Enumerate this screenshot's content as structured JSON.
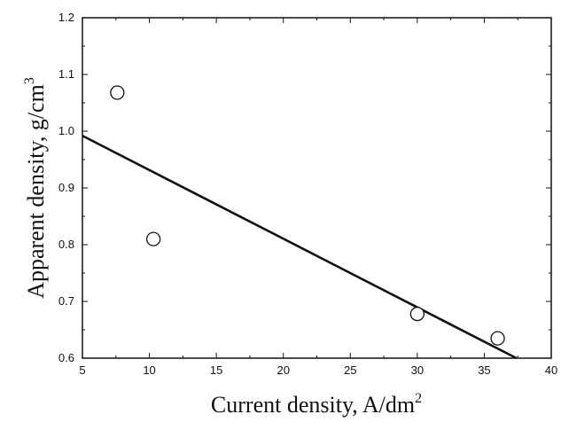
{
  "chart_data": {
    "type": "scatter",
    "title": "",
    "xlabel": "Current density, A/dm",
    "xlabel_superscript": "2",
    "ylabel": "Apparent density, g/cm",
    "ylabel_superscript": "3",
    "xlim": [
      5,
      40
    ],
    "ylim": [
      0.6,
      1.2
    ],
    "xticks": [
      5,
      10,
      15,
      20,
      25,
      30,
      35,
      40
    ],
    "yticks": [
      0.6,
      0.7,
      0.8,
      0.9,
      1.0,
      1.1,
      1.2
    ],
    "xtick_labels": [
      "5",
      "10",
      "15",
      "20",
      "25",
      "30",
      "35",
      "40"
    ],
    "ytick_labels": [
      "0.6",
      "0.7",
      "0.8",
      "0.9",
      "1.0",
      "1.1",
      "1.2"
    ],
    "grid": false,
    "legend": "none",
    "series": [
      {
        "type": "scatter",
        "marker": "open-circle",
        "x": [
          7.6,
          10.3,
          30.0,
          36.0
        ],
        "y": [
          1.068,
          0.81,
          0.678,
          0.635
        ]
      },
      {
        "type": "line",
        "x": [
          5,
          37.4
        ],
        "y": [
          0.992,
          0.6
        ]
      }
    ],
    "colors": {
      "axis": "#111111",
      "line": "#111111",
      "marker_stroke": "#111111",
      "marker_fill": "#ffffff"
    }
  }
}
